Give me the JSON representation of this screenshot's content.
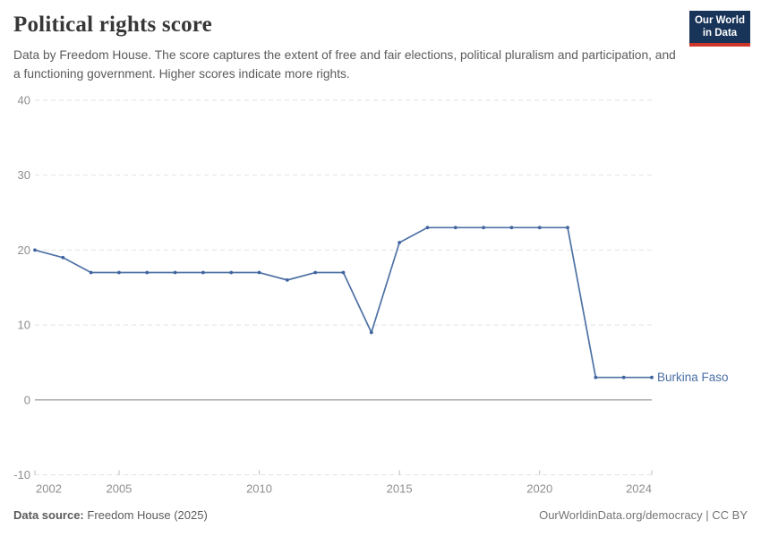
{
  "header": {
    "title": "Political rights score",
    "subtitle": "Data by Freedom House. The score captures the extent of free and fair elections, political pluralism and participation, and a functioning government. Higher scores indicate more rights.",
    "logo": {
      "line1": "Our World",
      "line2": "in Data",
      "bg_color": "#183459",
      "accent_color": "#cf3529"
    }
  },
  "chart_data": {
    "type": "line",
    "title": "Political rights score",
    "x": [
      2002,
      2003,
      2004,
      2005,
      2006,
      2007,
      2008,
      2009,
      2010,
      2011,
      2012,
      2013,
      2014,
      2015,
      2016,
      2017,
      2018,
      2019,
      2020,
      2021,
      2022,
      2023,
      2024
    ],
    "series": [
      {
        "name": "Burkina Faso",
        "color": "#4e72a5",
        "point_color": "#3f639e",
        "values": [
          20,
          19,
          17,
          17,
          17,
          17,
          17,
          17,
          17,
          16,
          17,
          17,
          9,
          21,
          23,
          23,
          23,
          23,
          23,
          23,
          3,
          3,
          3
        ]
      }
    ],
    "xlabel": "",
    "ylabel": "",
    "xlim": [
      2002,
      2024
    ],
    "ylim": [
      -10,
      40
    ],
    "xticks": [
      2002,
      2005,
      2010,
      2015,
      2020,
      2024
    ],
    "yticks": [
      -10,
      0,
      10,
      20,
      30,
      40
    ],
    "grid": "horizontal dashed",
    "zero_line": true,
    "legend_position": "end-of-line label",
    "colors": {
      "grid": "#e2e2e2",
      "zero_line": "#a3a3a3",
      "tick_mark": "#bbbbbb",
      "tick_text": "#8e8e8e",
      "end_label": "#4c6fa5"
    }
  },
  "footer": {
    "source_label": "Data source:",
    "source_value": "Freedom House (2025)",
    "link": "OurWorldinData.org/democracy",
    "separator": " | ",
    "license": "CC BY"
  }
}
